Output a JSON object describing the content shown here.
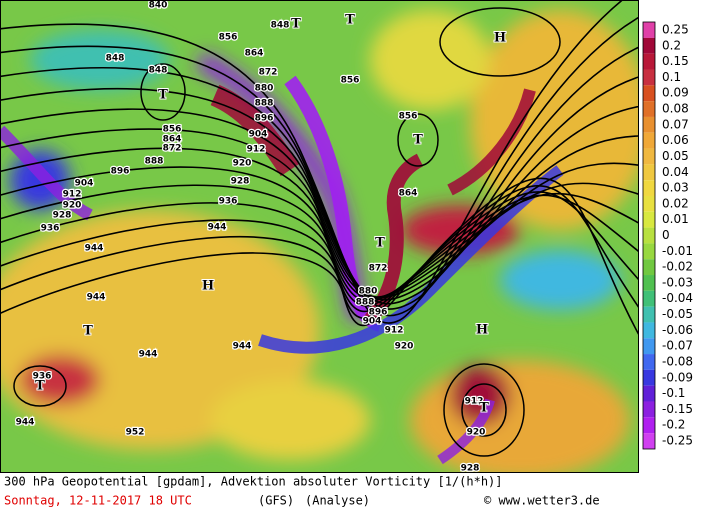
{
  "colorbar": {
    "labels": [
      "0.25",
      "0.2",
      "0.15",
      "0.1",
      "0.09",
      "0.08",
      "0.07",
      "0.06",
      "0.05",
      "0.04",
      "0.03",
      "0.02",
      "0.01",
      "0",
      "-0.01",
      "-0.02",
      "-0.03",
      "-0.04",
      "-0.05",
      "-0.06",
      "-0.07",
      "-0.08",
      "-0.09",
      "-0.1",
      "-0.15",
      "-0.2",
      "-0.25"
    ],
    "colors": [
      "#e040a8",
      "#a00838",
      "#b81838",
      "#c83040",
      "#d85020",
      "#e07028",
      "#e89030",
      "#f0a838",
      "#f0b840",
      "#f0c840",
      "#f0d840",
      "#e8e040",
      "#d8e840",
      "#b8e040",
      "#98d840",
      "#70c840",
      "#50c050",
      "#40c078",
      "#40c0b0",
      "#40b8e0",
      "#4098f0",
      "#4068f0",
      "#3838e0",
      "#6020d8",
      "#8c20e0",
      "#b020f0",
      "#d040f0"
    ]
  },
  "map": {
    "labels": [
      "840",
      "848",
      "856",
      "848",
      "848",
      "864",
      "872",
      "880",
      "888",
      "896",
      "904",
      "912",
      "920",
      "928",
      "936",
      "944",
      "856",
      "864",
      "872",
      "888",
      "896",
      "904",
      "912",
      "920",
      "928",
      "936",
      "944",
      "944",
      "944",
      "944",
      "952",
      "936",
      "944",
      "856",
      "856",
      "864",
      "872",
      "880",
      "888",
      "896",
      "904",
      "912",
      "920",
      "912",
      "920",
      "928",
      "T",
      "T",
      "T",
      "H",
      "T",
      "T",
      "H",
      "T",
      "H",
      "T",
      "T"
    ]
  },
  "caption": {
    "line1": "300 hPa Geopotential [gpdam], Advektion absoluter Vorticity [1/(h*h)]",
    "date": "Sonntag, 12-11-2017  18 UTC",
    "model": "(GFS)",
    "run": "(Analyse)",
    "source": "© www.wetter3.de"
  }
}
